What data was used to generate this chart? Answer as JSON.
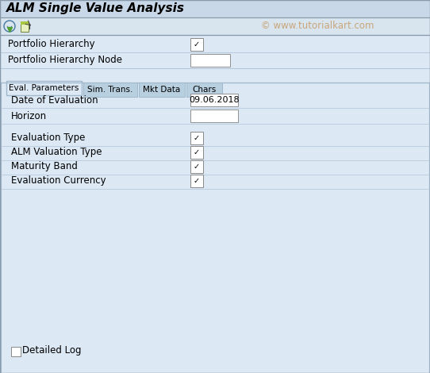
{
  "title": "ALM Single Value Analysis",
  "watermark": "© www.tutorialkart.com",
  "title_bg": "#c8d8e8",
  "toolbar_bg": "#d8e4ee",
  "body_bg": "#dce8f4",
  "tab_content_bg": "#dce8f4",
  "field_bg": "#ffffff",
  "title_font_size": 11,
  "watermark_font_size": 8.5,
  "tabs": [
    "Eval. Parameters",
    "Sim. Trans.",
    "Mkt Data",
    "Chars"
  ],
  "active_tab": 0,
  "checkbox_fields": [
    {
      "label": "Evaluation Type",
      "checked": true
    },
    {
      "label": "ALM Valuation Type",
      "checked": true
    },
    {
      "label": "Maturity Band",
      "checked": true
    },
    {
      "label": "Evaluation Currency",
      "checked": true
    }
  ],
  "bottom_checkbox": {
    "label": "Detailed Log",
    "checked": false
  },
  "border_color": "#a0b8cc",
  "text_color": "#000000",
  "watermark_color": "#c8a070",
  "row_line_color": "#b0c4d8",
  "tab_inactive_bg": "#b8cfe0",
  "tab_active_bg": "#dce8f4"
}
